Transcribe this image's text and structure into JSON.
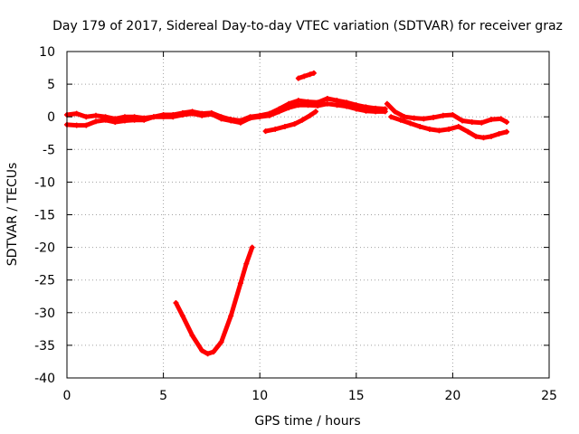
{
  "chart_data": {
    "type": "scatter",
    "title": "Day 179 of 2017, Sidereal Day-to-day VTEC variation (SDTVAR) for receiver graz",
    "xlabel": "GPS time / hours",
    "ylabel": "SDTVAR / TECUs",
    "xlim": [
      0,
      25
    ],
    "ylim": [
      -40,
      10
    ],
    "xticks": [
      0,
      5,
      10,
      15,
      20,
      25
    ],
    "yticks": [
      -40,
      -35,
      -30,
      -25,
      -20,
      -15,
      -10,
      -5,
      0,
      5,
      10
    ],
    "x_tick_labels": [
      "0",
      "5",
      "10",
      "15",
      "20",
      "25"
    ],
    "y_tick_labels": [
      "-40",
      "-35",
      "-30",
      "-25",
      "-20",
      "-15",
      "-10",
      "-5",
      "0",
      "5",
      "10"
    ],
    "grid": true,
    "colors": {
      "series": "#ff0000",
      "grid": "#a0a0a0",
      "axis": "#000000"
    },
    "series": [
      {
        "name": "main_band_upper",
        "points": [
          [
            0,
            0.3
          ],
          [
            0.5,
            0.5
          ],
          [
            1,
            0
          ],
          [
            1.5,
            0.2
          ],
          [
            2,
            0
          ],
          [
            2.5,
            -0.3
          ],
          [
            3,
            0
          ],
          [
            3.5,
            0
          ],
          [
            4,
            -0.2
          ],
          [
            4.5,
            0
          ],
          [
            5,
            0.3
          ],
          [
            5.5,
            0.3
          ],
          [
            6,
            0.6
          ],
          [
            6.5,
            0.8
          ],
          [
            7,
            0.5
          ],
          [
            7.5,
            0.6
          ],
          [
            8,
            0
          ],
          [
            8.5,
            -0.4
          ],
          [
            9,
            -0.6
          ],
          [
            9.5,
            0
          ],
          [
            10,
            0.2
          ],
          [
            10.5,
            0.5
          ],
          [
            11,
            1.2
          ],
          [
            11.5,
            2
          ],
          [
            12,
            2.5
          ],
          [
            12.5,
            2.3
          ],
          [
            13,
            2.2
          ],
          [
            13.5,
            2.8
          ],
          [
            14,
            2.5
          ],
          [
            14.5,
            2.2
          ],
          [
            15,
            1.8
          ],
          [
            15.5,
            1.5
          ],
          [
            16,
            1.3
          ],
          [
            16.5,
            1.2
          ]
        ]
      },
      {
        "name": "main_band_lower",
        "points": [
          [
            0,
            -1.2
          ],
          [
            0.5,
            -1.3
          ],
          [
            1,
            -1.3
          ],
          [
            1.5,
            -0.7
          ],
          [
            2,
            -0.5
          ],
          [
            2.5,
            -0.8
          ],
          [
            3,
            -0.6
          ],
          [
            3.5,
            -0.5
          ],
          [
            4,
            -0.5
          ],
          [
            4.5,
            0
          ],
          [
            5,
            0
          ],
          [
            5.5,
            0
          ],
          [
            6,
            0.3
          ],
          [
            6.5,
            0.5
          ],
          [
            7,
            0.2
          ],
          [
            7.5,
            0.4
          ],
          [
            8,
            -0.3
          ],
          [
            8.5,
            -0.6
          ],
          [
            9,
            -0.9
          ],
          [
            9.5,
            -0.2
          ],
          [
            10,
            0
          ],
          [
            10.5,
            0.2
          ],
          [
            11,
            0.8
          ],
          [
            11.5,
            1.4
          ],
          [
            12,
            1.8
          ],
          [
            12.5,
            1.8
          ],
          [
            13,
            1.7
          ],
          [
            13.5,
            2
          ],
          [
            14,
            1.8
          ],
          [
            14.5,
            1.6
          ],
          [
            15,
            1.2
          ],
          [
            15.5,
            0.9
          ],
          [
            16,
            0.8
          ],
          [
            16.5,
            0.8
          ]
        ]
      },
      {
        "name": "rising_segment",
        "points": [
          [
            10.3,
            -2.2
          ],
          [
            10.8,
            -1.9
          ],
          [
            11.3,
            -1.5
          ],
          [
            11.8,
            -1.1
          ],
          [
            12.2,
            -0.5
          ],
          [
            12.6,
            0.2
          ],
          [
            12.9,
            0.8
          ]
        ]
      },
      {
        "name": "spike_cluster",
        "points": [
          [
            12,
            5.9
          ],
          [
            12.3,
            6.2
          ],
          [
            12.6,
            6.5
          ],
          [
            12.8,
            6.7
          ]
        ]
      },
      {
        "name": "late_upper",
        "points": [
          [
            16.6,
            2
          ],
          [
            17,
            0.8
          ],
          [
            17.5,
            0
          ],
          [
            18,
            -0.2
          ],
          [
            18.5,
            -0.3
          ],
          [
            19,
            -0.1
          ],
          [
            19.5,
            0.2
          ],
          [
            20,
            0.3
          ],
          [
            20.5,
            -0.6
          ],
          [
            21,
            -0.8
          ],
          [
            21.5,
            -0.9
          ],
          [
            22,
            -0.4
          ],
          [
            22.5,
            -0.3
          ],
          [
            22.8,
            -0.8
          ]
        ]
      },
      {
        "name": "late_lower",
        "points": [
          [
            16.8,
            0
          ],
          [
            17.3,
            -0.5
          ],
          [
            17.8,
            -1
          ],
          [
            18.3,
            -1.5
          ],
          [
            18.8,
            -1.9
          ],
          [
            19.3,
            -2.1
          ],
          [
            19.8,
            -1.9
          ],
          [
            20.3,
            -1.5
          ],
          [
            20.8,
            -2.3
          ],
          [
            21.2,
            -3
          ],
          [
            21.6,
            -3.2
          ],
          [
            22,
            -3
          ],
          [
            22.4,
            -2.6
          ],
          [
            22.8,
            -2.3
          ]
        ]
      },
      {
        "name": "dip_curve",
        "points": [
          [
            5.65,
            -28.5
          ],
          [
            6,
            -30.5
          ],
          [
            6.5,
            -33.5
          ],
          [
            7,
            -35.8
          ],
          [
            7.3,
            -36.3
          ],
          [
            7.6,
            -36
          ],
          [
            8,
            -34.5
          ],
          [
            8.5,
            -30.5
          ],
          [
            9,
            -25.5
          ],
          [
            9.3,
            -22.5
          ],
          [
            9.6,
            -20
          ]
        ]
      }
    ]
  }
}
